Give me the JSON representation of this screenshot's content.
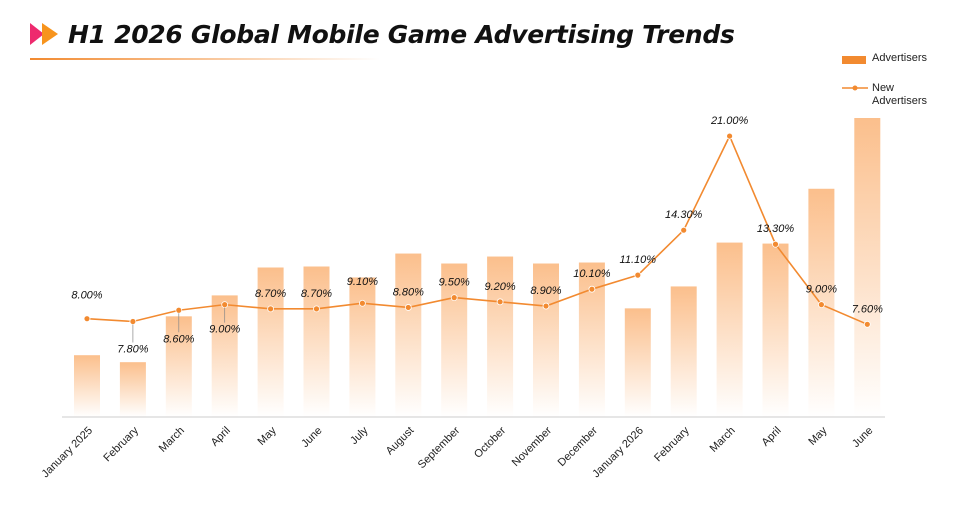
{
  "header": {
    "title": "H1 2026 Global Mobile Game Advertising Trends",
    "logo_icon": "double-play-arrow-icon"
  },
  "legend": {
    "bar_label": "Advertisers",
    "line_label": "New Advertisers"
  },
  "colors": {
    "accent": "#f28a30",
    "logo_pink": "#ee2a6e",
    "logo_orange": "#f7941d",
    "bar_top": "#fbbf8c",
    "bar_bottom": "#ffffff",
    "axis": "#cccccc"
  },
  "chart_data": {
    "type": "bar",
    "categories": [
      "January 2025",
      "February",
      "March",
      "April",
      "May",
      "June",
      "July",
      "August",
      "September",
      "October",
      "November",
      "December",
      "January 2026",
      "February",
      "March",
      "April",
      "May",
      "June"
    ],
    "series": [
      {
        "name": "Advertisers",
        "type": "bar",
        "values": [
          62,
          55,
          101,
          122,
          150,
          151,
          140,
          164,
          154,
          161,
          154,
          155,
          109,
          131,
          175,
          174,
          229,
          300
        ]
      },
      {
        "name": "New Advertisers",
        "type": "line",
        "values": [
          8.0,
          7.8,
          8.6,
          9.0,
          8.7,
          8.7,
          9.1,
          8.8,
          9.5,
          9.2,
          8.9,
          10.1,
          11.1,
          14.3,
          21.0,
          13.3,
          9.0,
          7.6
        ],
        "labels": [
          "8.00%",
          "7.80%",
          "8.60%",
          "9.00%",
          "8.70%",
          "8.70%",
          "9.10%",
          "8.80%",
          "9.50%",
          "9.20%",
          "8.90%",
          "10.10%",
          "11.10%",
          "14.30%",
          "21.00%",
          "13.30%",
          "9.00%",
          "7.60%"
        ]
      }
    ],
    "bar_ylim": [
      0,
      300
    ],
    "line_ylim": [
      1,
      23
    ],
    "grid": false,
    "legend_position": "top-right"
  }
}
